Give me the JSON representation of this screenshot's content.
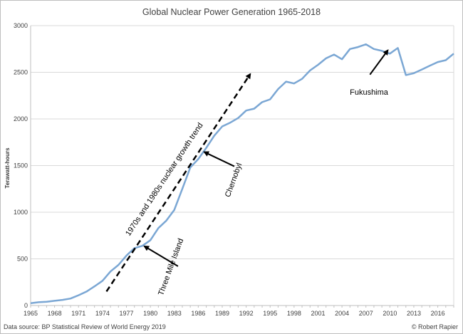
{
  "chart_data": {
    "type": "line",
    "title": "Global Nuclear Power Generation 1965-2018",
    "xlabel": "",
    "ylabel": "Terawatt-hours",
    "ylim": [
      0,
      3000
    ],
    "y_ticks": [
      0,
      500,
      1000,
      1500,
      2000,
      2500,
      3000
    ],
    "x_ticks": [
      1965,
      1968,
      1971,
      1974,
      1977,
      1980,
      1983,
      1986,
      1989,
      1992,
      1995,
      1998,
      2001,
      2004,
      2007,
      2010,
      2013,
      2016
    ],
    "xlim": [
      1965,
      2018
    ],
    "grid": "horizontal",
    "series_color": "#7ba7d4",
    "series": [
      {
        "x": [
          1965,
          1966,
          1967,
          1968,
          1969,
          1970,
          1971,
          1972,
          1973,
          1974,
          1975,
          1976,
          1977,
          1978,
          1979,
          1980,
          1981,
          1982,
          1983,
          1984,
          1985,
          1986,
          1987,
          1988,
          1989,
          1990,
          1991,
          1992,
          1993,
          1994,
          1995,
          1996,
          1997,
          1998,
          1999,
          2000,
          2001,
          2002,
          2003,
          2004,
          2005,
          2006,
          2007,
          2008,
          2009,
          2010,
          2011,
          2012,
          2013,
          2014,
          2015,
          2016,
          2017,
          2018
        ],
        "values": [
          25,
          35,
          40,
          50,
          60,
          75,
          110,
          150,
          205,
          265,
          365,
          435,
          535,
          615,
          640,
          700,
          830,
          910,
          1025,
          1250,
          1480,
          1570,
          1690,
          1820,
          1920,
          1960,
          2010,
          2090,
          2110,
          2180,
          2210,
          2320,
          2400,
          2380,
          2430,
          2520,
          2580,
          2650,
          2690,
          2640,
          2750,
          2770,
          2800,
          2750,
          2730,
          2700,
          2760,
          2470,
          2490,
          2530,
          2570,
          2610,
          2630,
          2700
        ]
      }
    ],
    "trend_line": {
      "label": "1970s and 1980s nuclear growth trend",
      "from": {
        "x": 1974.5,
        "y": 150
      },
      "to": {
        "x": 1992.5,
        "y": 2480
      }
    },
    "annotations": [
      {
        "label": "Three Mile Island",
        "arrow_to": {
          "x": 1979,
          "y": 650
        }
      },
      {
        "label": "Chernobyl",
        "arrow_to": {
          "x": 1986.5,
          "y": 1660
        }
      },
      {
        "label": "Fukushima",
        "arrow_to": {
          "x": 2010,
          "y": 2750
        }
      }
    ],
    "source": "Data source: BP Statistical Review of World Energy 2019",
    "credit": "© Robert Rapier"
  }
}
